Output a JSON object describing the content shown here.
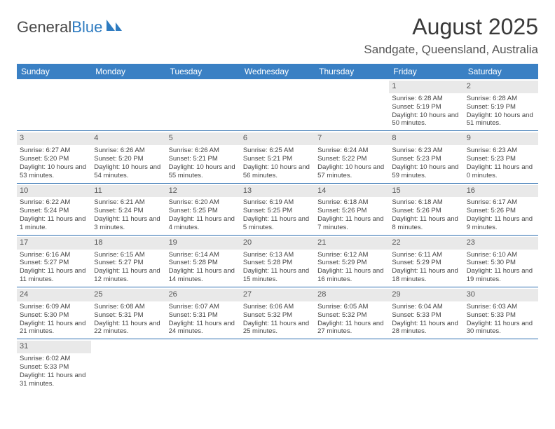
{
  "brand": {
    "general": "General",
    "blue": "Blue"
  },
  "title": "August 2025",
  "location": "Sandgate, Queensland, Australia",
  "colors": {
    "header_bg": "#3a80c4",
    "header_text": "#ffffff",
    "row_divider": "#2e6fb0",
    "daynum_bg": "#e9e9e9",
    "text": "#444444"
  },
  "days_of_week": [
    "Sunday",
    "Monday",
    "Tuesday",
    "Wednesday",
    "Thursday",
    "Friday",
    "Saturday"
  ],
  "weeks": [
    [
      null,
      null,
      null,
      null,
      null,
      {
        "n": "1",
        "sr": "Sunrise: 6:28 AM",
        "ss": "Sunset: 5:19 PM",
        "dl": "Daylight: 10 hours and 50 minutes."
      },
      {
        "n": "2",
        "sr": "Sunrise: 6:28 AM",
        "ss": "Sunset: 5:19 PM",
        "dl": "Daylight: 10 hours and 51 minutes."
      }
    ],
    [
      {
        "n": "3",
        "sr": "Sunrise: 6:27 AM",
        "ss": "Sunset: 5:20 PM",
        "dl": "Daylight: 10 hours and 53 minutes."
      },
      {
        "n": "4",
        "sr": "Sunrise: 6:26 AM",
        "ss": "Sunset: 5:20 PM",
        "dl": "Daylight: 10 hours and 54 minutes."
      },
      {
        "n": "5",
        "sr": "Sunrise: 6:26 AM",
        "ss": "Sunset: 5:21 PM",
        "dl": "Daylight: 10 hours and 55 minutes."
      },
      {
        "n": "6",
        "sr": "Sunrise: 6:25 AM",
        "ss": "Sunset: 5:21 PM",
        "dl": "Daylight: 10 hours and 56 minutes."
      },
      {
        "n": "7",
        "sr": "Sunrise: 6:24 AM",
        "ss": "Sunset: 5:22 PM",
        "dl": "Daylight: 10 hours and 57 minutes."
      },
      {
        "n": "8",
        "sr": "Sunrise: 6:23 AM",
        "ss": "Sunset: 5:23 PM",
        "dl": "Daylight: 10 hours and 59 minutes."
      },
      {
        "n": "9",
        "sr": "Sunrise: 6:23 AM",
        "ss": "Sunset: 5:23 PM",
        "dl": "Daylight: 11 hours and 0 minutes."
      }
    ],
    [
      {
        "n": "10",
        "sr": "Sunrise: 6:22 AM",
        "ss": "Sunset: 5:24 PM",
        "dl": "Daylight: 11 hours and 1 minute."
      },
      {
        "n": "11",
        "sr": "Sunrise: 6:21 AM",
        "ss": "Sunset: 5:24 PM",
        "dl": "Daylight: 11 hours and 3 minutes."
      },
      {
        "n": "12",
        "sr": "Sunrise: 6:20 AM",
        "ss": "Sunset: 5:25 PM",
        "dl": "Daylight: 11 hours and 4 minutes."
      },
      {
        "n": "13",
        "sr": "Sunrise: 6:19 AM",
        "ss": "Sunset: 5:25 PM",
        "dl": "Daylight: 11 hours and 5 minutes."
      },
      {
        "n": "14",
        "sr": "Sunrise: 6:18 AM",
        "ss": "Sunset: 5:26 PM",
        "dl": "Daylight: 11 hours and 7 minutes."
      },
      {
        "n": "15",
        "sr": "Sunrise: 6:18 AM",
        "ss": "Sunset: 5:26 PM",
        "dl": "Daylight: 11 hours and 8 minutes."
      },
      {
        "n": "16",
        "sr": "Sunrise: 6:17 AM",
        "ss": "Sunset: 5:26 PM",
        "dl": "Daylight: 11 hours and 9 minutes."
      }
    ],
    [
      {
        "n": "17",
        "sr": "Sunrise: 6:16 AM",
        "ss": "Sunset: 5:27 PM",
        "dl": "Daylight: 11 hours and 11 minutes."
      },
      {
        "n": "18",
        "sr": "Sunrise: 6:15 AM",
        "ss": "Sunset: 5:27 PM",
        "dl": "Daylight: 11 hours and 12 minutes."
      },
      {
        "n": "19",
        "sr": "Sunrise: 6:14 AM",
        "ss": "Sunset: 5:28 PM",
        "dl": "Daylight: 11 hours and 14 minutes."
      },
      {
        "n": "20",
        "sr": "Sunrise: 6:13 AM",
        "ss": "Sunset: 5:28 PM",
        "dl": "Daylight: 11 hours and 15 minutes."
      },
      {
        "n": "21",
        "sr": "Sunrise: 6:12 AM",
        "ss": "Sunset: 5:29 PM",
        "dl": "Daylight: 11 hours and 16 minutes."
      },
      {
        "n": "22",
        "sr": "Sunrise: 6:11 AM",
        "ss": "Sunset: 5:29 PM",
        "dl": "Daylight: 11 hours and 18 minutes."
      },
      {
        "n": "23",
        "sr": "Sunrise: 6:10 AM",
        "ss": "Sunset: 5:30 PM",
        "dl": "Daylight: 11 hours and 19 minutes."
      }
    ],
    [
      {
        "n": "24",
        "sr": "Sunrise: 6:09 AM",
        "ss": "Sunset: 5:30 PM",
        "dl": "Daylight: 11 hours and 21 minutes."
      },
      {
        "n": "25",
        "sr": "Sunrise: 6:08 AM",
        "ss": "Sunset: 5:31 PM",
        "dl": "Daylight: 11 hours and 22 minutes."
      },
      {
        "n": "26",
        "sr": "Sunrise: 6:07 AM",
        "ss": "Sunset: 5:31 PM",
        "dl": "Daylight: 11 hours and 24 minutes."
      },
      {
        "n": "27",
        "sr": "Sunrise: 6:06 AM",
        "ss": "Sunset: 5:32 PM",
        "dl": "Daylight: 11 hours and 25 minutes."
      },
      {
        "n": "28",
        "sr": "Sunrise: 6:05 AM",
        "ss": "Sunset: 5:32 PM",
        "dl": "Daylight: 11 hours and 27 minutes."
      },
      {
        "n": "29",
        "sr": "Sunrise: 6:04 AM",
        "ss": "Sunset: 5:33 PM",
        "dl": "Daylight: 11 hours and 28 minutes."
      },
      {
        "n": "30",
        "sr": "Sunrise: 6:03 AM",
        "ss": "Sunset: 5:33 PM",
        "dl": "Daylight: 11 hours and 30 minutes."
      }
    ],
    [
      {
        "n": "31",
        "sr": "Sunrise: 6:02 AM",
        "ss": "Sunset: 5:33 PM",
        "dl": "Daylight: 11 hours and 31 minutes."
      },
      null,
      null,
      null,
      null,
      null,
      null
    ]
  ]
}
